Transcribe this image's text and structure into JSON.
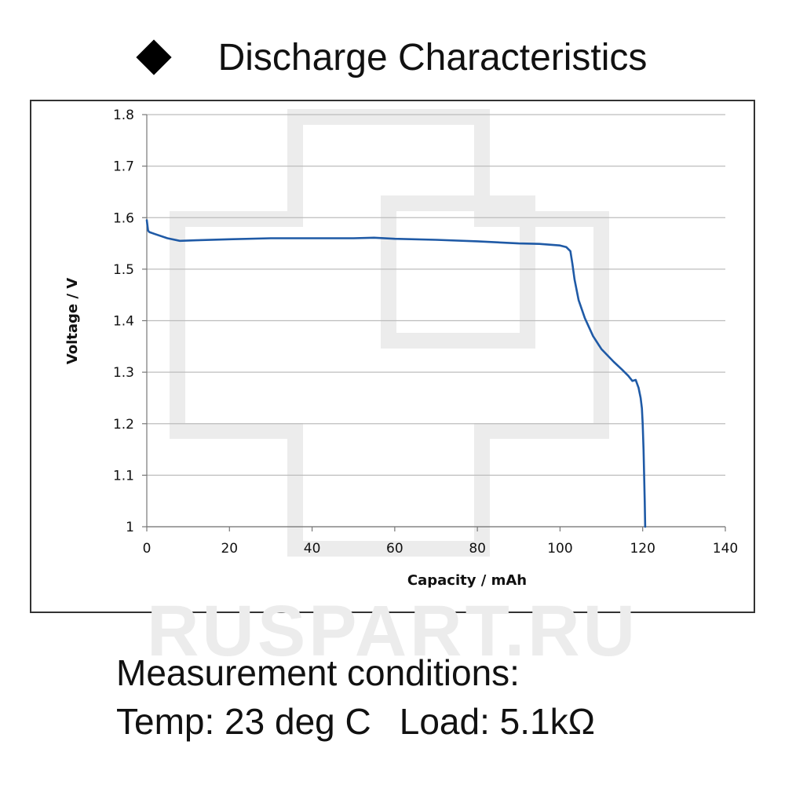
{
  "heading": {
    "bullet_icon": "diamond-icon",
    "text": "Discharge Characteristics"
  },
  "watermark": {
    "text": "RUSPART.RU",
    "color": "#ececec"
  },
  "conditions": {
    "title": "Measurement conditions:",
    "temp": "Temp: 23 deg C",
    "load": "Load: 5.1kΩ"
  },
  "chart_data": {
    "type": "line",
    "title": "",
    "xlabel": "Capacity  /  mAh",
    "ylabel": "Voltage  /  V",
    "xlim": [
      0,
      140
    ],
    "ylim": [
      1,
      1.8
    ],
    "xticks": [
      "0",
      "20",
      "40",
      "60",
      "80",
      "100",
      "120",
      "140"
    ],
    "yticks": [
      "1",
      "1.1",
      "1.2",
      "1.3",
      "1.4",
      "1.5",
      "1.6",
      "1.7",
      "1.8"
    ],
    "grid": "horizontal",
    "line_color": "#1f5aa6",
    "series": [
      {
        "x": [
          0,
          0.3,
          0.6,
          2,
          5,
          8,
          12,
          20,
          30,
          40,
          50,
          55,
          60,
          70,
          80,
          90,
          95,
          100,
          101.5,
          102.5,
          103,
          103.5,
          104.5,
          106,
          108,
          110,
          113,
          115,
          116.5,
          117.5,
          118.3,
          119,
          119.5,
          119.8,
          120,
          120.2,
          120.5,
          120.6
        ],
        "y": [
          1.595,
          1.575,
          1.572,
          1.568,
          1.56,
          1.555,
          1.556,
          1.558,
          1.56,
          1.56,
          1.56,
          1.561,
          1.559,
          1.557,
          1.554,
          1.55,
          1.549,
          1.546,
          1.543,
          1.535,
          1.51,
          1.48,
          1.44,
          1.405,
          1.37,
          1.345,
          1.32,
          1.305,
          1.293,
          1.283,
          1.285,
          1.27,
          1.25,
          1.23,
          1.2,
          1.15,
          1.05,
          1.0
        ]
      }
    ]
  }
}
